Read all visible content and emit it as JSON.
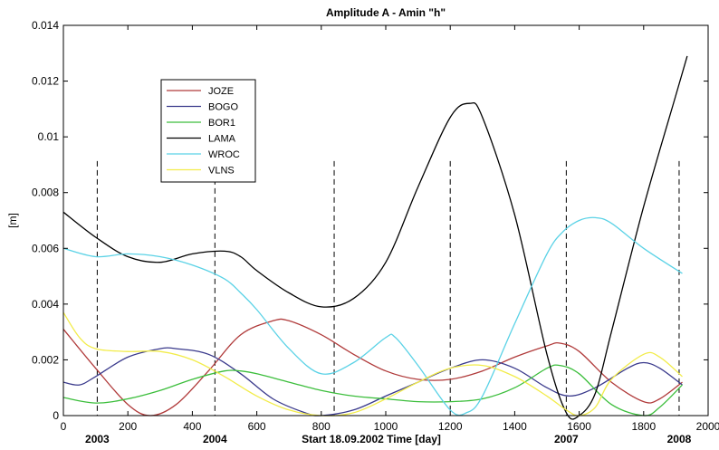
{
  "chart_data": {
    "type": "line",
    "title": "Amplitude A - Amin    \"h\"",
    "ylabel": "[m]",
    "xlabel": "Start 18.09.2002     Time [day]",
    "xlim": [
      0,
      2000
    ],
    "ylim": [
      0,
      0.014
    ],
    "x_ticks": [
      0,
      200,
      400,
      600,
      800,
      1000,
      1200,
      1400,
      1600,
      1800,
      2000
    ],
    "y_ticks": [
      0,
      0.002,
      0.004,
      0.006,
      0.008,
      0.01,
      0.012,
      0.014
    ],
    "x_tick_labels": [
      "0",
      "200",
      "400",
      "600",
      "800",
      "1000",
      "1200",
      "1400",
      "1600",
      "1800",
      "2000"
    ],
    "y_tick_labels": [
      "0",
      "0.002",
      "0.004",
      "0.006",
      "0.008",
      "0.01",
      "0.012",
      "0.014"
    ],
    "grid": false,
    "legend_position": "upper-left",
    "year_markers": [
      {
        "x": 105,
        "label": "2003"
      },
      {
        "x": 470,
        "label": "2004"
      },
      {
        "x": 840,
        "label": ""
      },
      {
        "x": 1200,
        "label": ""
      },
      {
        "x": 1560,
        "label": "2007"
      },
      {
        "x": 1910,
        "label": "2008"
      }
    ],
    "year_marker_top": 0.00913,
    "series": [
      {
        "name": "JOZE",
        "color": "#b03a3a",
        "x": [
          0,
          100,
          200,
          270,
          350,
          450,
          550,
          650,
          700,
          800,
          900,
          1000,
          1100,
          1200,
          1300,
          1400,
          1500,
          1540,
          1600,
          1700,
          1800,
          1850,
          1920
        ],
        "y": [
          0.0031,
          0.0017,
          0.0004,
          0.0,
          0.0004,
          0.0016,
          0.0029,
          0.0034,
          0.0034,
          0.0029,
          0.0022,
          0.0016,
          0.0013,
          0.0013,
          0.0016,
          0.0021,
          0.0025,
          0.0026,
          0.0023,
          0.0012,
          0.0005,
          0.0006,
          0.0012
        ]
      },
      {
        "name": "BOGO",
        "color": "#3a3a8c",
        "x": [
          0,
          50,
          100,
          200,
          300,
          350,
          450,
          550,
          650,
          750,
          800,
          900,
          1000,
          1100,
          1200,
          1300,
          1400,
          1500,
          1570,
          1650,
          1750,
          1800,
          1850,
          1920
        ],
        "y": [
          0.0012,
          0.0011,
          0.0014,
          0.0021,
          0.0024,
          0.0024,
          0.0022,
          0.0015,
          0.0006,
          0.0001,
          0.0,
          0.0002,
          0.0007,
          0.0012,
          0.0017,
          0.002,
          0.0017,
          0.001,
          0.0007,
          0.001,
          0.0017,
          0.0019,
          0.0017,
          0.0011
        ]
      },
      {
        "name": "BOR1",
        "color": "#3cbe3c",
        "x": [
          0,
          100,
          200,
          300,
          400,
          500,
          550,
          600,
          700,
          800,
          900,
          1000,
          1100,
          1200,
          1300,
          1400,
          1500,
          1540,
          1600,
          1700,
          1800,
          1850,
          1920
        ],
        "y": [
          0.00065,
          0.00045,
          0.0006,
          0.0009,
          0.0013,
          0.0016,
          0.0016,
          0.0015,
          0.0012,
          0.0009,
          0.0007,
          0.0006,
          0.0005,
          0.0005,
          0.0006,
          0.001,
          0.0017,
          0.0018,
          0.0015,
          0.0004,
          0.0,
          0.0003,
          0.0011
        ]
      },
      {
        "name": "LAMA",
        "color": "#000000",
        "x": [
          0,
          100,
          200,
          300,
          400,
          500,
          550,
          600,
          700,
          800,
          900,
          1000,
          1100,
          1200,
          1260,
          1300,
          1400,
          1500,
          1560,
          1600,
          1650,
          1700,
          1800,
          1900,
          1935
        ],
        "y": [
          0.0073,
          0.0064,
          0.0057,
          0.0055,
          0.0058,
          0.0059,
          0.0057,
          0.0052,
          0.0044,
          0.0039,
          0.0042,
          0.0055,
          0.0082,
          0.0107,
          0.0112,
          0.0107,
          0.0072,
          0.0022,
          0.0001,
          0.0,
          0.0008,
          0.003,
          0.0075,
          0.0115,
          0.0129
        ]
      },
      {
        "name": "WROC",
        "color": "#5ad2e6",
        "x": [
          0,
          100,
          200,
          300,
          400,
          500,
          550,
          600,
          700,
          800,
          900,
          1000,
          1030,
          1100,
          1200,
          1250,
          1300,
          1400,
          1500,
          1550,
          1600,
          1650,
          1700,
          1800,
          1920
        ],
        "y": [
          0.006,
          0.0057,
          0.0058,
          0.0057,
          0.0054,
          0.0049,
          0.0044,
          0.0038,
          0.0024,
          0.0015,
          0.0019,
          0.0028,
          0.0028,
          0.0018,
          0.0002,
          0.0001,
          0.0007,
          0.0033,
          0.0058,
          0.0066,
          0.007,
          0.0071,
          0.0069,
          0.006,
          0.0051
        ]
      },
      {
        "name": "VLNS",
        "color": "#f2ec4a",
        "x": [
          0,
          50,
          100,
          200,
          300,
          400,
          500,
          600,
          700,
          800,
          900,
          1000,
          1100,
          1200,
          1300,
          1400,
          1500,
          1560,
          1600,
          1650,
          1700,
          1800,
          1850,
          1920
        ],
        "y": [
          0.0037,
          0.0028,
          0.0024,
          0.0023,
          0.0023,
          0.002,
          0.0014,
          0.0007,
          0.0002,
          0.0,
          0.0001,
          0.0006,
          0.0012,
          0.0017,
          0.0018,
          0.0014,
          0.0007,
          0.0002,
          0.0,
          0.0003,
          0.0013,
          0.0022,
          0.0021,
          0.0014
        ]
      }
    ]
  }
}
